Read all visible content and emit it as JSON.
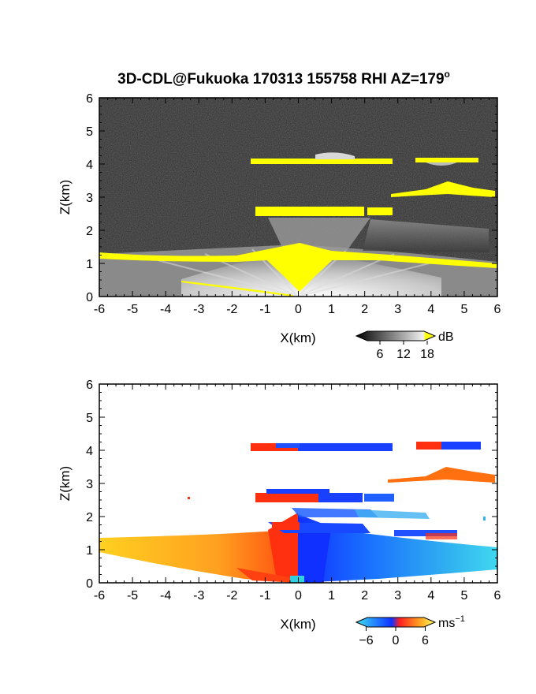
{
  "title": "3D-CDL@Fukuoka 170313 155758 RHI AZ=179",
  "title_degree": "o",
  "chart_data": [
    {
      "type": "heatmap",
      "name": "backscatter",
      "xlabel": "X(km)",
      "ylabel": "Z(km)",
      "xlim": [
        -6,
        6
      ],
      "ylim": [
        0,
        6
      ],
      "xticks": [
        "-6",
        "-5",
        "-4",
        "-3",
        "-2",
        "-1",
        "0",
        "1",
        "2",
        "3",
        "4",
        "5",
        "6"
      ],
      "yticks": [
        "0",
        "1",
        "2",
        "3",
        "4",
        "5",
        "6"
      ],
      "colorbar": {
        "unit": "dB",
        "ticks": [
          "6",
          "12",
          "18"
        ],
        "range": [
          0,
          20
        ]
      },
      "colors": {
        "background": "#2a2a2a",
        "bright": "#e8e8e8",
        "saturated": "#ffff00"
      },
      "features": [
        {
          "kind": "boundary-layer",
          "x": [
            -6,
            6
          ],
          "z_top_edge": [
            1.3,
            1.0
          ]
        },
        {
          "kind": "layer",
          "x": [
            -1.4,
            3.0
          ],
          "z": [
            2.5,
            2.7
          ]
        },
        {
          "kind": "layer",
          "x": [
            2.9,
            6.0
          ],
          "z": [
            2.9,
            3.4
          ]
        },
        {
          "kind": "layer",
          "x": [
            -1.4,
            2.9
          ],
          "z": [
            4.0,
            4.2
          ]
        },
        {
          "kind": "layer",
          "x": [
            3.5,
            5.5
          ],
          "z": [
            4.0,
            4.2
          ]
        }
      ]
    },
    {
      "type": "heatmap",
      "name": "radial-velocity",
      "xlabel": "X(km)",
      "ylabel": "Z(km)",
      "xlim": [
        -6,
        6
      ],
      "ylim": [
        0,
        6
      ],
      "xticks": [
        "-6",
        "-5",
        "-4",
        "-3",
        "-2",
        "-1",
        "0",
        "1",
        "2",
        "3",
        "4",
        "5",
        "6"
      ],
      "yticks": [
        "0",
        "1",
        "2",
        "3",
        "4",
        "5",
        "6"
      ],
      "colorbar": {
        "unit": "ms",
        "unit_exponent": "−1",
        "ticks": [
          "−6",
          "0",
          "6"
        ],
        "range": [
          -8,
          8
        ]
      },
      "colors": {
        "negative": "#0a3cff",
        "near_zero": "#ff3010",
        "positive": "#ffd21e",
        "far_negative": "#33c8f0"
      },
      "features": [
        {
          "kind": "boundary-layer-away",
          "x": [
            -6,
            0
          ],
          "velocity": 5
        },
        {
          "kind": "boundary-layer-toward",
          "x": [
            0,
            6
          ],
          "velocity": -5
        },
        {
          "kind": "layer",
          "x": [
            -1.4,
            3.0
          ],
          "z": [
            2.5,
            2.7
          ]
        },
        {
          "kind": "layer",
          "x": [
            2.9,
            6.0
          ],
          "z": [
            2.9,
            3.4
          ],
          "velocity": 3
        },
        {
          "kind": "layer",
          "x": [
            -1.4,
            2.9
          ],
          "z": [
            4.0,
            4.2
          ]
        },
        {
          "kind": "layer",
          "x": [
            3.5,
            5.5
          ],
          "z": [
            4.0,
            4.2
          ]
        }
      ]
    }
  ]
}
